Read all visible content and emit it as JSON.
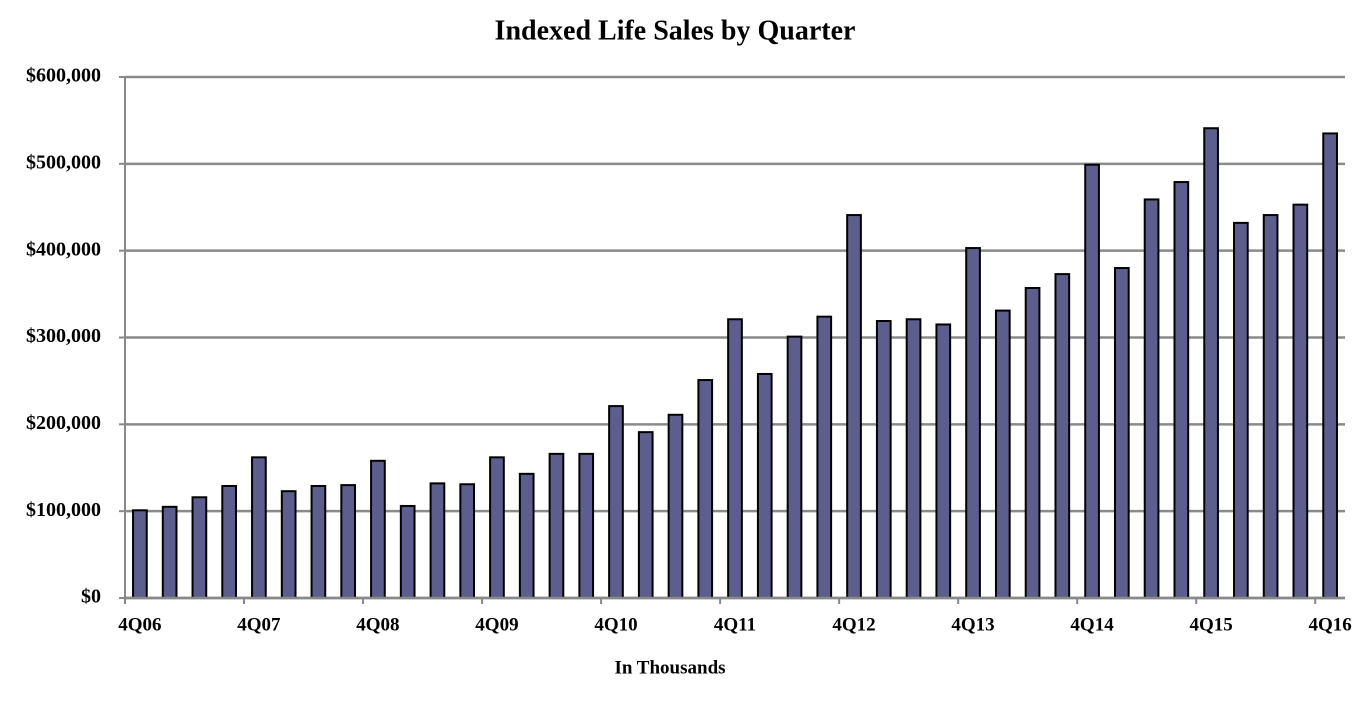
{
  "chart_data": {
    "type": "bar",
    "title": "Indexed Life Sales by Quarter",
    "x_label": "In Thousands",
    "categories": [
      "4Q06",
      null,
      null,
      null,
      "4Q07",
      null,
      null,
      null,
      "4Q08",
      null,
      null,
      null,
      "4Q09",
      null,
      null,
      null,
      "4Q10",
      null,
      null,
      null,
      "4Q11",
      null,
      null,
      null,
      "4Q12",
      null,
      null,
      null,
      "4Q13",
      null,
      null,
      null,
      "4Q14",
      null,
      null,
      null,
      "4Q15",
      null,
      null,
      null,
      "4Q16"
    ],
    "values": [
      101000,
      105000,
      116000,
      129000,
      162000,
      123000,
      129000,
      130000,
      158000,
      106000,
      132000,
      131000,
      162000,
      143000,
      166000,
      166000,
      221000,
      191000,
      211000,
      251000,
      321000,
      258000,
      301000,
      324000,
      441000,
      319000,
      321000,
      315000,
      403000,
      331000,
      357000,
      373000,
      499000,
      380000,
      459000,
      479000,
      541000,
      432000,
      441000,
      453000,
      535000
    ],
    "color": "#5e5e8e",
    "ylim": [
      0,
      600000
    ],
    "yticks": [
      {
        "value": 0,
        "label": "$0"
      },
      {
        "value": 100000,
        "label": "$100,000"
      },
      {
        "value": 200000,
        "label": "$200,000"
      },
      {
        "value": 300000,
        "label": "$300,000"
      },
      {
        "value": 400000,
        "label": "$400,000"
      },
      {
        "value": 500000,
        "label": "$500,000"
      },
      {
        "value": 600000,
        "label": "$600,000"
      }
    ],
    "grid": true
  }
}
